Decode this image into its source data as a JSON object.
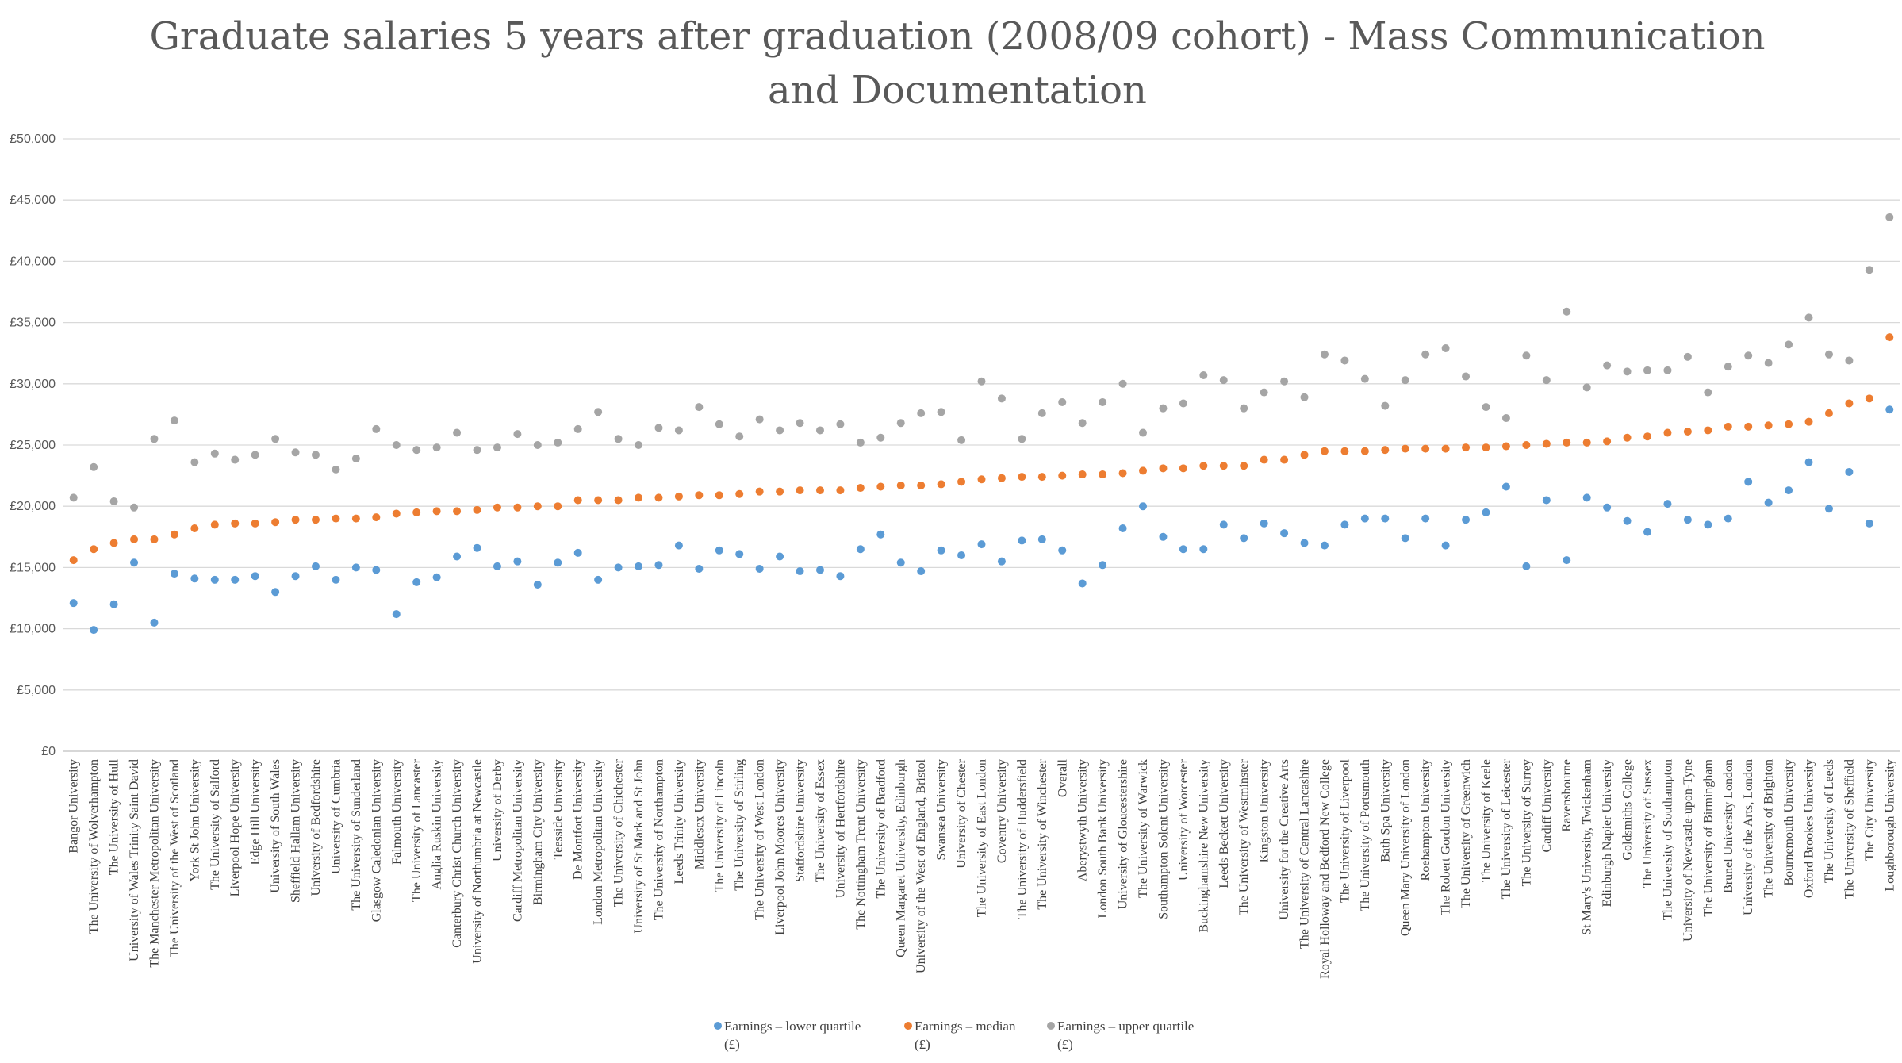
{
  "chart_data": {
    "type": "scatter",
    "title": "Graduate salaries 5 years after graduation (2008/09 cohort) - Mass Communication and Documentation",
    "title_lines": [
      "Graduate salaries 5 years after graduation (2008/09 cohort) - Mass Communication",
      "and Documentation"
    ],
    "xlabel": "",
    "ylabel": "",
    "ylim": [
      0,
      50000
    ],
    "yticks": [
      0,
      5000,
      10000,
      15000,
      20000,
      25000,
      30000,
      35000,
      40000,
      45000,
      50000
    ],
    "ytick_labels": [
      "£0",
      "£5,000",
      "£10,000",
      "£15,000",
      "£20,000",
      "£25,000",
      "£30,000",
      "£35,000",
      "£40,000",
      "£45,000",
      "£50,000"
    ],
    "grid": true,
    "legend_position": "bottom",
    "categories": [
      "Bangor University",
      "The University of Wolverhampton",
      "The University of Hull",
      "University of Wales Trinity Saint David",
      "The Manchester Metropolitan University",
      "The University of the West of Scotland",
      "York St John University",
      "The University of Salford",
      "Liverpool Hope University",
      "Edge Hill University",
      "University of South Wales",
      "Sheffield Hallam University",
      "University of Bedfordshire",
      "University of Cumbria",
      "The University of Sunderland",
      "Glasgow Caledonian University",
      "Falmouth University",
      "The University of Lancaster",
      "Anglia Ruskin University",
      "Canterbury Christ Church University",
      "University of Northumbria at Newcastle",
      "University of Derby",
      "Cardiff Metropolitan University",
      "Birmingham City University",
      "Teesside University",
      "De Montfort University",
      "London Metropolitan University",
      "The University of Chichester",
      "University of St Mark and St John",
      "The University of Northampton",
      "Leeds Trinity University",
      "Middlesex University",
      "The University of Lincoln",
      "The University of Stirling",
      "The University of West London",
      "Liverpool John Moores University",
      "Staffordshire University",
      "The University of Essex",
      "University of Hertfordshire",
      "The Nottingham Trent University",
      "The University of Bradford",
      "Queen Margaret University, Edinburgh",
      "University of the West of England, Bristol",
      "Swansea University",
      "University of Chester",
      "The University of East London",
      "Coventry University",
      "The University of Huddersfield",
      "The University of Winchester",
      "Overall",
      "Aberystwyth University",
      "London South Bank University",
      "University of Gloucestershire",
      "The University of Warwick",
      "Southampton Solent University",
      "University of Worcester",
      "Buckinghamshire New University",
      "Leeds Beckett University",
      "The University of Westminster",
      "Kingston University",
      "University for the Creative Arts",
      "The University of Central Lancashire",
      "Royal Holloway and Bedford New College",
      "The University of Liverpool",
      "The University of Portsmouth",
      "Bath Spa University",
      "Queen Mary University of London",
      "Roehampton University",
      "The Robert Gordon University",
      "The University of Greenwich",
      "The University of Keele",
      "The University of Leicester",
      "The University of Surrey",
      "Cardiff University",
      "Ravensbourne",
      "St Mary's University, Twickenham",
      "Edinburgh Napier University",
      "Goldsmiths College",
      "The University of Sussex",
      "The University of Southampton",
      "University of Newcastle-upon-Tyne",
      "The University of Birmingham",
      "Brunel University London",
      "University of the Arts, London",
      "The University of Brighton",
      "Bournemouth University",
      "Oxford Brookes University",
      "The University of Leeds",
      "The University of Sheffield",
      "The City University",
      "Loughborough University"
    ],
    "series": [
      {
        "name": "Earnings – lower quartile (£)",
        "color": "#5B9BD5",
        "values": [
          12100,
          9900,
          12000,
          15400,
          10500,
          14500,
          14100,
          14000,
          14000,
          14300,
          13000,
          14300,
          15100,
          14000,
          15000,
          14800,
          11200,
          13800,
          14200,
          15900,
          16600,
          15100,
          15500,
          13600,
          15400,
          16200,
          14000,
          15000,
          15100,
          15200,
          16800,
          14900,
          16400,
          16100,
          14900,
          15900,
          14700,
          14800,
          14300,
          16500,
          17700,
          15400,
          14700,
          16400,
          16000,
          16900,
          15500,
          17200,
          17300,
          16400,
          13700,
          15200,
          18200,
          20000,
          17500,
          16500,
          16500,
          18500,
          17400,
          18600,
          17800,
          17000,
          16800,
          18500,
          19000,
          19000,
          17400,
          19000,
          16800,
          18900,
          19500,
          21600,
          15100,
          20500,
          15600,
          20700,
          19900,
          18800,
          17900,
          20200,
          18900,
          18500,
          19000,
          22000,
          20300,
          21300,
          23600,
          19800,
          22800,
          18600,
          27900
        ]
      },
      {
        "name": "Earnings – median (£)",
        "color": "#ED7D31",
        "values": [
          15600,
          16500,
          17000,
          17300,
          17300,
          17700,
          18200,
          18500,
          18600,
          18600,
          18700,
          18900,
          18900,
          19000,
          19000,
          19100,
          19400,
          19500,
          19600,
          19600,
          19700,
          19900,
          19900,
          20000,
          20000,
          20500,
          20500,
          20500,
          20700,
          20700,
          20800,
          20900,
          20900,
          21000,
          21200,
          21200,
          21300,
          21300,
          21300,
          21500,
          21600,
          21700,
          21700,
          21800,
          22000,
          22200,
          22300,
          22400,
          22400,
          22500,
          22600,
          22600,
          22700,
          22900,
          23100,
          23100,
          23300,
          23300,
          23300,
          23800,
          23800,
          24200,
          24500,
          24500,
          24500,
          24600,
          24700,
          24700,
          24700,
          24800,
          24800,
          24900,
          25000,
          25100,
          25200,
          25200,
          25300,
          25600,
          25700,
          26000,
          26100,
          26200,
          26500,
          26500,
          26600,
          26700,
          26900,
          27600,
          28400,
          28800,
          33800
        ]
      },
      {
        "name": "Earnings – upper quartile (£)",
        "color": "#A5A5A5",
        "values": [
          20700,
          23200,
          20400,
          19900,
          25500,
          27000,
          23600,
          24300,
          23800,
          24200,
          25500,
          24400,
          24200,
          23000,
          23900,
          26300,
          25000,
          24600,
          24800,
          26000,
          24600,
          24800,
          25900,
          25000,
          25200,
          26300,
          27700,
          25500,
          25000,
          26400,
          26200,
          28100,
          26700,
          25700,
          27100,
          26200,
          26800,
          26200,
          26700,
          25200,
          25600,
          26800,
          27600,
          27700,
          25400,
          30200,
          28800,
          25500,
          27600,
          28500,
          26800,
          28500,
          30000,
          26000,
          28000,
          28400,
          30700,
          30300,
          28000,
          29300,
          30200,
          28900,
          32400,
          31900,
          30400,
          28200,
          30300,
          32400,
          32900,
          30600,
          28100,
          27200,
          32300,
          30300,
          35900,
          29700,
          31500,
          31000,
          31100,
          31100,
          32200,
          29300,
          31400,
          32300,
          31700,
          33200,
          35400,
          32400,
          31900,
          39300,
          43600
        ]
      }
    ],
    "legend_lines": [
      [
        "Earnings – lower quartile",
        "(£)"
      ],
      [
        "Earnings – median",
        "(£)"
      ],
      [
        "Earnings – upper quartile",
        "(£)"
      ]
    ]
  }
}
